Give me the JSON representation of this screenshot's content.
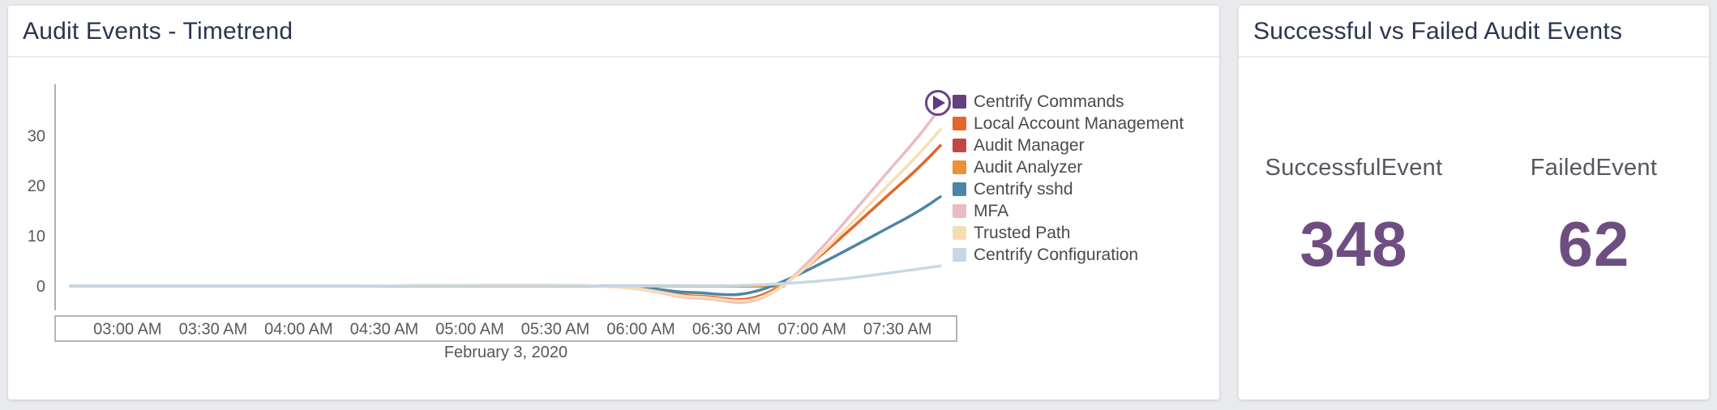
{
  "page": {
    "background_color": "#e9eaed"
  },
  "left_card": {
    "title": "Audit Events - Timetrend"
  },
  "chart_data": {
    "type": "line",
    "title": "Audit Events - Timetrend",
    "grid": "off",
    "legend_position": "right",
    "playhead_icon": "play-icon",
    "playhead_color": "#6b4387",
    "x_axis": {
      "domain": [
        "02:40 AM",
        "07:45 AM"
      ],
      "tick_labels": [
        "03:00 AM",
        "03:30 AM",
        "04:00 AM",
        "04:30 AM",
        "05:00 AM",
        "05:30 AM",
        "06:00 AM",
        "06:30 AM",
        "07:00 AM",
        "07:30 AM"
      ],
      "date_label": "February 3, 2020"
    },
    "y_axis": {
      "tick_labels": [
        0,
        10,
        20,
        30
      ],
      "range": [
        -4.8,
        40.2
      ]
    },
    "series": [
      {
        "name": "Centrify Commands",
        "color": "#63417f",
        "points": [
          [
            "02:40 AM",
            0
          ],
          [
            "04:10 AM",
            0
          ],
          [
            "06:50 AM",
            0
          ]
        ]
      },
      {
        "name": "Local Account Management",
        "color": "#e2672a",
        "points": [
          [
            "02:40 AM",
            0
          ],
          [
            "04:10 AM",
            0
          ],
          [
            "05:45 AM",
            0
          ],
          [
            "06:20 AM",
            -2
          ],
          [
            "06:47 AM",
            -0.6
          ],
          [
            "07:30 AM",
            19.8
          ],
          [
            "07:45 AM",
            28
          ]
        ]
      },
      {
        "name": "Audit Manager",
        "color": "#c14747",
        "points": [
          [
            "02:40 AM",
            0
          ],
          [
            "04:10 AM",
            0
          ],
          [
            "06:50 AM",
            0
          ]
        ]
      },
      {
        "name": "Audit Analyzer",
        "color": "#ea9334",
        "points": [
          [
            "02:40 AM",
            0
          ],
          [
            "04:10 AM",
            0
          ],
          [
            "06:50 AM",
            0
          ]
        ]
      },
      {
        "name": "Centrify sshd",
        "color": "#4c85a7",
        "points": [
          [
            "02:40 AM",
            0
          ],
          [
            "04:10 AM",
            0
          ],
          [
            "05:47 AM",
            0
          ],
          [
            "06:18 AM",
            -1.3
          ],
          [
            "06:44 AM",
            -0.4
          ],
          [
            "07:30 AM",
            12.6
          ],
          [
            "07:45 AM",
            17.8
          ]
        ]
      },
      {
        "name": "MFA",
        "color": "#ecbac2",
        "points": [
          [
            "02:40 AM",
            0
          ],
          [
            "04:10 AM",
            0
          ],
          [
            "05:45 AM",
            0
          ],
          [
            "06:20 AM",
            -2.4
          ],
          [
            "06:48 AM",
            -0.6
          ],
          [
            "07:30 AM",
            25
          ],
          [
            "07:45 AM",
            35.5
          ]
        ]
      },
      {
        "name": "Trusted Path",
        "color": "#f8ddb2",
        "points": [
          [
            "02:40 AM",
            0
          ],
          [
            "04:10 AM",
            0
          ],
          [
            "05:45 AM",
            0
          ],
          [
            "06:20 AM",
            -2.2
          ],
          [
            "06:48 AM",
            -0.6
          ],
          [
            "07:30 AM",
            22
          ],
          [
            "07:45 AM",
            31.2
          ]
        ]
      },
      {
        "name": "Centrify Configuration",
        "color": "#c5d9e4",
        "points": [
          [
            "02:40 AM",
            0
          ],
          [
            "04:10 AM",
            0
          ],
          [
            "06:05 AM",
            0
          ],
          [
            "06:40 AM",
            0.2
          ],
          [
            "07:10 AM",
            1.4
          ],
          [
            "07:45 AM",
            4
          ]
        ]
      }
    ]
  },
  "right_card": {
    "title": "Successful vs Failed Audit Events",
    "value_color": "#6e4e81",
    "stats": [
      {
        "label": "SuccessfulEvent",
        "value": "348"
      },
      {
        "label": "FailedEvent",
        "value": "62"
      }
    ]
  }
}
